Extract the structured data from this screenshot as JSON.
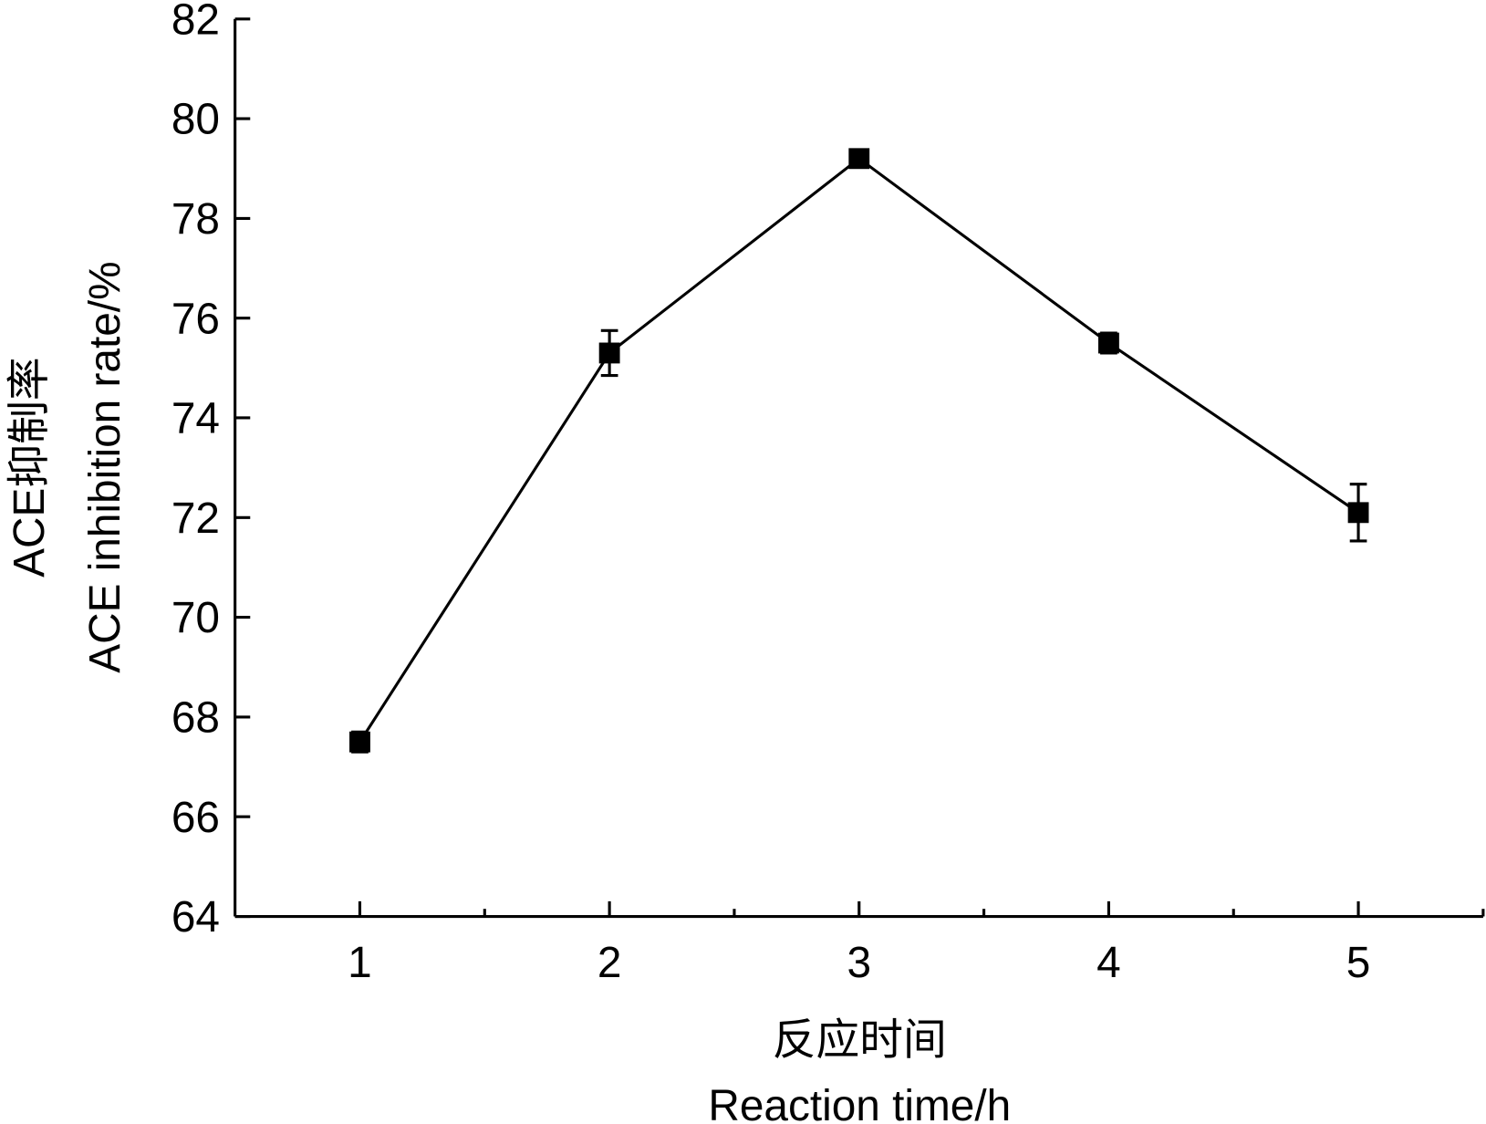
{
  "chart_data": {
    "type": "line",
    "title": "",
    "xlabel_cn": "反应时间",
    "xlabel": "Reaction time/h",
    "ylabel_cn": "ACE抑制率",
    "ylabel": "ACE inhibition rate/%",
    "xlim": [
      0.5,
      5.5
    ],
    "ylim": [
      64,
      82
    ],
    "xticks": [
      1,
      2,
      3,
      4,
      5
    ],
    "xminor": [
      1.5,
      2.5,
      3.5,
      4.5,
      5.5
    ],
    "yticks": [
      64,
      66,
      68,
      70,
      72,
      74,
      76,
      78,
      80,
      82
    ],
    "grid": false,
    "series": [
      {
        "name": "ACE inhibition rate",
        "color": "#000000",
        "x": [
          1,
          2,
          3,
          4,
          5
        ],
        "values": [
          67.5,
          75.3,
          79.2,
          75.5,
          72.1
        ],
        "errors": [
          0.2,
          0.45,
          0.15,
          0.2,
          0.57
        ]
      }
    ]
  }
}
